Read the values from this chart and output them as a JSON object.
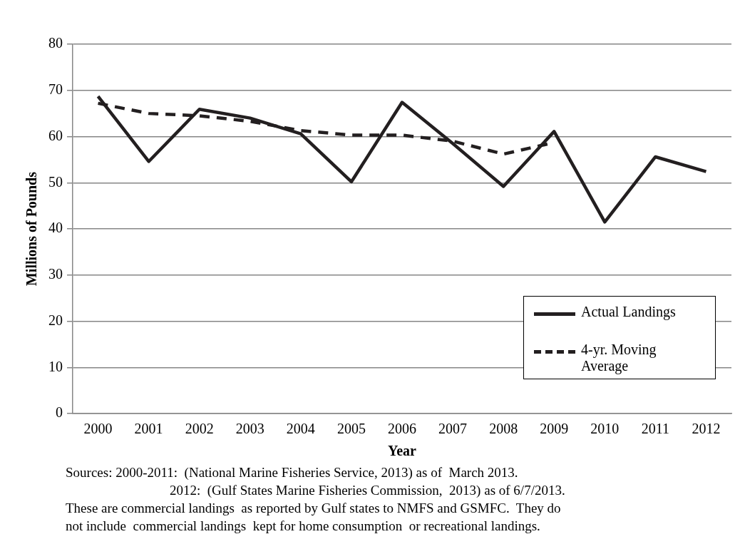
{
  "chart_data": {
    "type": "line",
    "xlabel": "Year",
    "ylabel": "Millions of Pounds",
    "categories": [
      "2000",
      "2001",
      "2002",
      "2003",
      "2004",
      "2005",
      "2006",
      "2007",
      "2008",
      "2009",
      "2010",
      "2011",
      "2012"
    ],
    "series": [
      {
        "name": "Actual Landings",
        "color": "#231f20",
        "line_style": "solid",
        "values": [
          68.7,
          54.6,
          65.9,
          64.0,
          60.6,
          50.2,
          67.4,
          58.5,
          49.2,
          61.1,
          41.5,
          55.6,
          52.4
        ]
      },
      {
        "name": "4-yr. Moving Average",
        "color": "#231f20",
        "line_style": "dashed",
        "values": [
          67.2,
          65.0,
          64.5,
          63.3,
          61.3,
          60.3,
          60.3,
          59.0,
          56.2,
          58.7,
          null,
          null,
          null
        ]
      }
    ],
    "ylim": [
      0,
      80
    ],
    "yticks": [
      0,
      10,
      20,
      30,
      40,
      50,
      60,
      70,
      80
    ],
    "grid": "y",
    "legend": "bottom right",
    "marker": "none",
    "annotations": [
      "Sources: 2000-2011:  (National Marine Fisheries Service, 2013) as of  March 2013.",
      "2012:  (Gulf States Marine Fisheries Commission,  2013) as of 6/7/2013.",
      "These are commercial landings  as reported by Gulf states to NMFS and GSMFC.  They do",
      "not include  commercial landings  kept for home consumption  or recreational landings."
    ]
  }
}
